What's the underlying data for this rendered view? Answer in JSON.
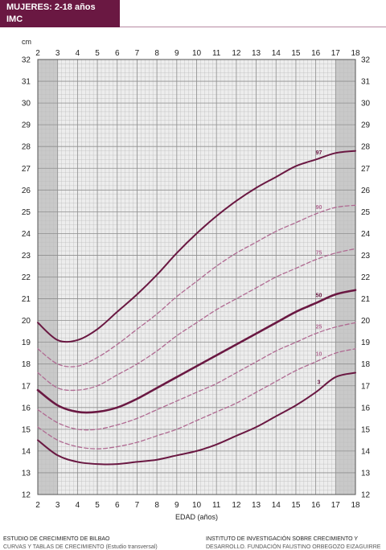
{
  "header": {
    "title": "MUJERES: 2-18 años",
    "subtitle": "IMC"
  },
  "footer": {
    "left": "ESTUDIO DE CRECIMIENTO DE BILBAO",
    "left2": "CURVAS Y TABLAS DE CRECIMIENTO (Estudio transversal)",
    "right": "INSTITUTO DE INVESTIGACIÓN SOBRE CRECIMIENTO Y",
    "right2": "DESARROLLO. FUNDACIÓN FAUSTINO ORBEGOZO EIZAGUIRRE"
  },
  "colors": {
    "curve": "#6a1842",
    "dashed": "#b06a92",
    "grid": "#bdbdbd",
    "band_dark": "#c9c9c9",
    "band_light": "#ededed"
  },
  "chart_data": {
    "type": "line",
    "title": "",
    "xlabel": "EDAD (años)",
    "ylabel": "cm",
    "xlim": [
      2,
      18
    ],
    "ylim": [
      12,
      32
    ],
    "x": [
      2,
      3,
      4,
      5,
      6,
      7,
      8,
      9,
      10,
      11,
      12,
      13,
      14,
      15,
      16,
      17,
      18
    ],
    "series": [
      {
        "name": "97",
        "style": "solid",
        "values": [
          19.9,
          19.1,
          19.1,
          19.6,
          20.4,
          21.2,
          22.1,
          23.1,
          24.0,
          24.8,
          25.5,
          26.1,
          26.6,
          27.1,
          27.4,
          27.7,
          27.8
        ]
      },
      {
        "name": "90",
        "style": "dashed",
        "values": [
          18.7,
          18.0,
          17.9,
          18.3,
          18.9,
          19.6,
          20.3,
          21.1,
          21.8,
          22.5,
          23.1,
          23.6,
          24.1,
          24.5,
          24.9,
          25.2,
          25.3
        ]
      },
      {
        "name": "75",
        "style": "dashed",
        "values": [
          17.6,
          16.9,
          16.8,
          17.0,
          17.5,
          18.0,
          18.6,
          19.3,
          19.9,
          20.5,
          21.0,
          21.5,
          22.0,
          22.4,
          22.8,
          23.1,
          23.3
        ]
      },
      {
        "name": "50",
        "style": "bold",
        "values": [
          16.8,
          16.1,
          15.8,
          15.8,
          16.0,
          16.4,
          16.9,
          17.4,
          17.9,
          18.4,
          18.9,
          19.4,
          19.9,
          20.4,
          20.8,
          21.2,
          21.4
        ]
      },
      {
        "name": "25",
        "style": "dashed",
        "values": [
          15.9,
          15.3,
          15.0,
          15.0,
          15.2,
          15.5,
          15.9,
          16.3,
          16.7,
          17.1,
          17.6,
          18.1,
          18.6,
          19.0,
          19.4,
          19.7,
          19.9
        ]
      },
      {
        "name": "10",
        "style": "dashed",
        "values": [
          15.1,
          14.5,
          14.2,
          14.1,
          14.2,
          14.4,
          14.7,
          15.0,
          15.4,
          15.8,
          16.2,
          16.7,
          17.2,
          17.7,
          18.1,
          18.5,
          18.7
        ]
      },
      {
        "name": "3",
        "style": "solid",
        "values": [
          14.5,
          13.8,
          13.5,
          13.4,
          13.4,
          13.5,
          13.6,
          13.8,
          14.0,
          14.3,
          14.7,
          15.1,
          15.6,
          16.1,
          16.7,
          17.4,
          17.6
        ]
      }
    ]
  }
}
